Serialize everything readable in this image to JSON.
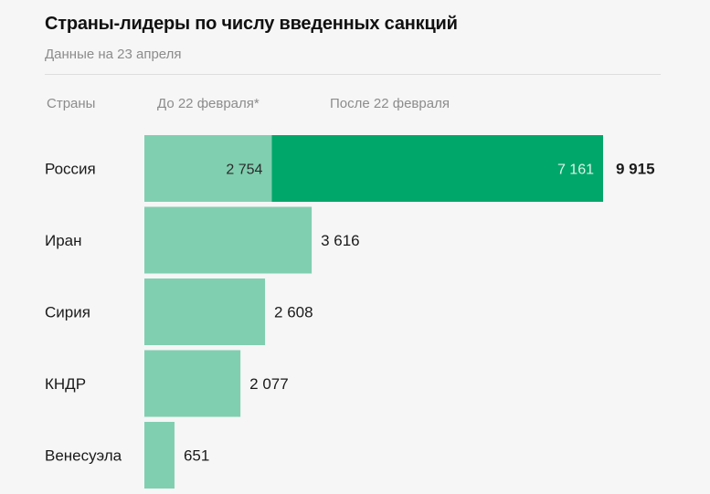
{
  "title": "Страны-лидеры по числу введенных санкций",
  "subtitle": "Данные на 23 апреля",
  "columns": {
    "countries": "Страны",
    "before": "До 22 февраля*",
    "after": "После 22 февраля"
  },
  "colors": {
    "before": "#80cfb0",
    "after": "#00a76a",
    "text": "#1a1a1a",
    "muted": "#8c8c8c",
    "on_dark": "#d9f3e8"
  },
  "chart_data": {
    "type": "bar",
    "orientation": "horizontal",
    "stacked": true,
    "title": "Страны-лидеры по числу введенных санкций",
    "subtitle": "Данные на 23 апреля",
    "categories": [
      "Россия",
      "Иран",
      "Сирия",
      "КНДР",
      "Венесуэла"
    ],
    "series": [
      {
        "name": "До 22 февраля*",
        "values": [
          2754,
          3616,
          2608,
          2077,
          651
        ]
      },
      {
        "name": "После 22 февраля",
        "values": [
          7161,
          0,
          0,
          0,
          0
        ]
      }
    ],
    "totals": [
      9915,
      3616,
      2608,
      2077,
      651
    ],
    "segment_labels": {
      "before": [
        "2 754",
        "",
        "",
        "",
        ""
      ],
      "after": [
        "7 161",
        "",
        "",
        "",
        ""
      ]
    },
    "total_labels": [
      "9 915",
      "3 616",
      "2 608",
      "2 077",
      "651"
    ],
    "xlim": [
      0,
      9915
    ],
    "legend": "top-header"
  }
}
